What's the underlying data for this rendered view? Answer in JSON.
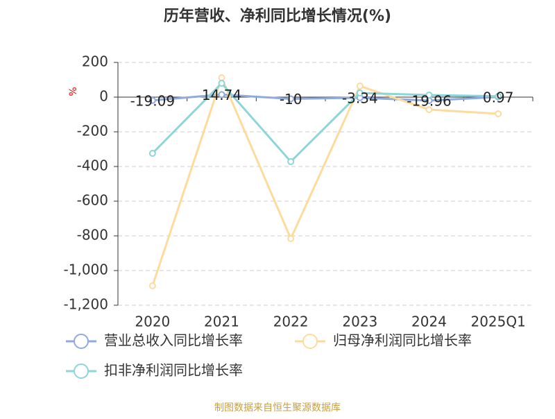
{
  "chart_data": {
    "type": "line",
    "title": "历年营收、净利同比增长情况(%)",
    "y_label": "%",
    "categories": [
      "2020",
      "2021",
      "2022",
      "2023",
      "2024",
      "2025Q1"
    ],
    "series": [
      {
        "name": "营业总收入同比增长率",
        "color": "#8faadc",
        "values": [
          -19.09,
          14.74,
          -10,
          -3.34,
          -19.96,
          0.97
        ],
        "show_labels": true
      },
      {
        "name": "归母净利润同比增长率",
        "color": "#fddb9c",
        "values": [
          -1088,
          112,
          -816,
          64,
          -72,
          -96
        ]
      },
      {
        "name": "扣非净利润同比增长率",
        "color": "#8dd5d8",
        "values": [
          -324,
          80,
          -372,
          24,
          12,
          5
        ]
      }
    ],
    "ylim": [
      -1200,
      200
    ],
    "yticks": [
      {
        "value": -1200,
        "label": "-1,200"
      },
      {
        "value": -1000,
        "label": "-1,000"
      },
      -800,
      -600,
      -400,
      -200,
      0,
      200
    ],
    "grid": true,
    "source": "制图数据来自恒生聚源数据库"
  }
}
